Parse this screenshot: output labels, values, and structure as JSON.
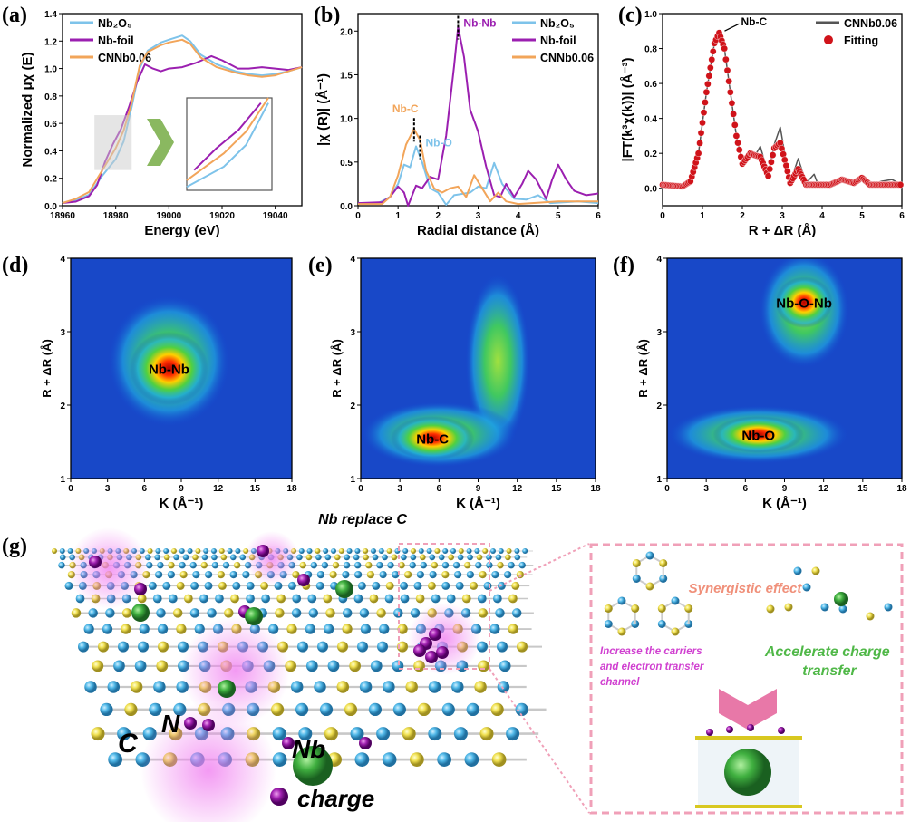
{
  "panel_labels": [
    "(a)",
    "(b)",
    "(c)",
    "(d)",
    "(e)",
    "(f)",
    "(g)"
  ],
  "colors": {
    "Nb2O5": "#7ec3ea",
    "Nb-foil": "#9b1fb0",
    "CNNb0.06": "#f2a55a",
    "fit_line": "#555555",
    "fitting": "#d0131a"
  },
  "chart_data": [
    {
      "id": "a",
      "type": "line",
      "xlabel": "Energy (eV)",
      "ylabel": "Normalized μχ (E)",
      "xlim": [
        18960,
        19050
      ],
      "ylim": [
        0,
        1.4
      ],
      "xticks": [
        18960,
        18980,
        19000,
        19020,
        19040
      ],
      "yticks": [
        "0.0",
        "0.2",
        "0.4",
        "0.6",
        "0.8",
        "1.0",
        "1.2",
        "1.4"
      ],
      "legend": "top-left",
      "inset": "zoom of 18972–18986 eV edge region",
      "series": [
        {
          "name": "Nb₂O₅",
          "color": "#7ec3ea",
          "points": [
            [
              18960,
              0.02
            ],
            [
              18965,
              0.04
            ],
            [
              18970,
              0.08
            ],
            [
              18975,
              0.22
            ],
            [
              18980,
              0.34
            ],
            [
              18983,
              0.47
            ],
            [
              18986,
              0.72
            ],
            [
              18989,
              1.0
            ],
            [
              18992,
              1.13
            ],
            [
              18997,
              1.19
            ],
            [
              19000,
              1.21
            ],
            [
              19005,
              1.24
            ],
            [
              19008,
              1.2
            ],
            [
              19012,
              1.1
            ],
            [
              19018,
              1.03
            ],
            [
              19025,
              0.98
            ],
            [
              19030,
              0.96
            ],
            [
              19035,
              0.95
            ],
            [
              19040,
              0.96
            ],
            [
              19045,
              0.98
            ],
            [
              19050,
              1.01
            ]
          ]
        },
        {
          "name": "Nb-foil",
          "color": "#9b1fb0",
          "points": [
            [
              18960,
              0.02
            ],
            [
              18965,
              0.03
            ],
            [
              18970,
              0.07
            ],
            [
              18973,
              0.15
            ],
            [
              18976,
              0.32
            ],
            [
              18979,
              0.45
            ],
            [
              18982,
              0.56
            ],
            [
              18985,
              0.72
            ],
            [
              18988,
              0.9
            ],
            [
              18991,
              1.03
            ],
            [
              18994,
              1.0
            ],
            [
              18997,
              0.98
            ],
            [
              19000,
              1.0
            ],
            [
              19005,
              1.01
            ],
            [
              19010,
              1.04
            ],
            [
              19016,
              1.09
            ],
            [
              19020,
              1.06
            ],
            [
              19026,
              1.0
            ],
            [
              19030,
              1.0
            ],
            [
              19035,
              1.01
            ],
            [
              19040,
              1.0
            ],
            [
              19045,
              0.99
            ],
            [
              19050,
              1.01
            ]
          ]
        },
        {
          "name": "CNNb0.06",
          "color": "#f2a55a",
          "points": [
            [
              18960,
              0.02
            ],
            [
              18965,
              0.05
            ],
            [
              18970,
              0.1
            ],
            [
              18975,
              0.26
            ],
            [
              18980,
              0.42
            ],
            [
              18983,
              0.55
            ],
            [
              18986,
              0.75
            ],
            [
              18989,
              1.02
            ],
            [
              18992,
              1.12
            ],
            [
              18997,
              1.17
            ],
            [
              19000,
              1.19
            ],
            [
              19005,
              1.21
            ],
            [
              19008,
              1.18
            ],
            [
              19012,
              1.08
            ],
            [
              19018,
              1.01
            ],
            [
              19025,
              0.97
            ],
            [
              19030,
              0.95
            ],
            [
              19035,
              0.94
            ],
            [
              19040,
              0.95
            ],
            [
              19045,
              0.98
            ],
            [
              19050,
              1.01
            ]
          ]
        }
      ]
    },
    {
      "id": "b",
      "type": "line",
      "xlabel": "Radial distance (Å)",
      "ylabel": "|χ (R)| (Å⁻¹)",
      "xlim": [
        0,
        6
      ],
      "ylim": [
        0,
        2.2
      ],
      "xticks": [
        0,
        1,
        2,
        3,
        4,
        5,
        6
      ],
      "yticks": [
        "0.0",
        "0.5",
        "1.0",
        "1.5",
        "2.0"
      ],
      "legend": "top-right",
      "annotations": [
        {
          "text": "Nb-C",
          "x": 1.4,
          "y": 0.88,
          "color": "#f2a55a"
        },
        {
          "text": "Nb-O",
          "x": 1.55,
          "y": 0.68,
          "color": "#7ec3ea"
        },
        {
          "text": "Nb-Nb",
          "x": 2.5,
          "y": 2.05,
          "color": "#9b1fb0"
        }
      ],
      "series": [
        {
          "name": "Nb₂O₅",
          "color": "#7ec3ea",
          "points": [
            [
              0,
              0.03
            ],
            [
              0.5,
              0.03
            ],
            [
              0.8,
              0.1
            ],
            [
              1.0,
              0.25
            ],
            [
              1.15,
              0.47
            ],
            [
              1.3,
              0.44
            ],
            [
              1.45,
              0.68
            ],
            [
              1.6,
              0.5
            ],
            [
              1.8,
              0.2
            ],
            [
              2.0,
              0.15
            ],
            [
              2.2,
              0.01
            ],
            [
              2.4,
              0.12
            ],
            [
              2.8,
              0.15
            ],
            [
              3.0,
              0.22
            ],
            [
              3.2,
              0.2
            ],
            [
              3.4,
              0.49
            ],
            [
              3.6,
              0.25
            ],
            [
              3.9,
              0.08
            ],
            [
              4.2,
              0.07
            ],
            [
              4.5,
              0.12
            ],
            [
              4.8,
              0.03
            ],
            [
              5.5,
              0.05
            ],
            [
              6,
              0.03
            ]
          ]
        },
        {
          "name": "Nb-foil",
          "color": "#9b1fb0",
          "points": [
            [
              0,
              0.03
            ],
            [
              0.6,
              0.04
            ],
            [
              0.8,
              0.1
            ],
            [
              1.0,
              0.22
            ],
            [
              1.15,
              0.15
            ],
            [
              1.25,
              0.0
            ],
            [
              1.45,
              0.23
            ],
            [
              1.6,
              0.2
            ],
            [
              1.8,
              0.33
            ],
            [
              2.0,
              0.3
            ],
            [
              2.2,
              0.8
            ],
            [
              2.4,
              1.6
            ],
            [
              2.5,
              2.05
            ],
            [
              2.65,
              1.7
            ],
            [
              2.8,
              1.1
            ],
            [
              3.0,
              0.85
            ],
            [
              3.2,
              0.45
            ],
            [
              3.4,
              0.12
            ],
            [
              3.55,
              0.1
            ],
            [
              3.7,
              0.25
            ],
            [
              3.9,
              0.1
            ],
            [
              4.1,
              0.25
            ],
            [
              4.25,
              0.4
            ],
            [
              4.45,
              0.3
            ],
            [
              4.7,
              0.08
            ],
            [
              4.85,
              0.3
            ],
            [
              5.0,
              0.47
            ],
            [
              5.2,
              0.3
            ],
            [
              5.4,
              0.17
            ],
            [
              5.7,
              0.12
            ],
            [
              6.0,
              0.14
            ]
          ]
        },
        {
          "name": "CNNb0.06",
          "color": "#f2a55a",
          "points": [
            [
              0,
              0.02
            ],
            [
              0.6,
              0.02
            ],
            [
              0.8,
              0.1
            ],
            [
              1.0,
              0.35
            ],
            [
              1.2,
              0.7
            ],
            [
              1.4,
              0.88
            ],
            [
              1.55,
              0.75
            ],
            [
              1.7,
              0.4
            ],
            [
              1.9,
              0.2
            ],
            [
              2.1,
              0.15
            ],
            [
              2.3,
              0.2
            ],
            [
              2.5,
              0.22
            ],
            [
              2.7,
              0.1
            ],
            [
              2.9,
              0.35
            ],
            [
              3.1,
              0.2
            ],
            [
              3.3,
              0.05
            ],
            [
              3.5,
              0.15
            ],
            [
              3.7,
              0.05
            ],
            [
              4.0,
              0.02
            ],
            [
              5.0,
              0.05
            ],
            [
              6,
              0.05
            ]
          ]
        }
      ]
    },
    {
      "id": "c",
      "type": "line",
      "xlabel": "R + ΔR (Å)",
      "ylabel": "|FT(k³χ(k))| (Å⁻³)",
      "xlim": [
        0,
        6
      ],
      "ylim": [
        -0.1,
        1.0
      ],
      "xticks": [
        0,
        1,
        2,
        3,
        4,
        5,
        6
      ],
      "yticks": [
        "0.0",
        "0.2",
        "0.4",
        "0.6",
        "0.8",
        "1.0"
      ],
      "legend": "top-right",
      "annotations": [
        {
          "text": "Nb-C",
          "x": 1.42,
          "y": 0.89,
          "color": "#000000"
        }
      ],
      "series": [
        {
          "name": "CNNb0.06",
          "color": "#555555",
          "style": "line",
          "points": [
            [
              0,
              0.02
            ],
            [
              0.5,
              0.01
            ],
            [
              0.7,
              0.04
            ],
            [
              0.9,
              0.2
            ],
            [
              1.1,
              0.55
            ],
            [
              1.3,
              0.83
            ],
            [
              1.42,
              0.89
            ],
            [
              1.55,
              0.8
            ],
            [
              1.7,
              0.55
            ],
            [
              1.85,
              0.3
            ],
            [
              2.0,
              0.15
            ],
            [
              2.2,
              0.2
            ],
            [
              2.3,
              0.18
            ],
            [
              2.45,
              0.24
            ],
            [
              2.65,
              0.08
            ],
            [
              2.8,
              0.25
            ],
            [
              2.95,
              0.35
            ],
            [
              3.1,
              0.15
            ],
            [
              3.2,
              0.03
            ],
            [
              3.4,
              0.17
            ],
            [
              3.6,
              0.03
            ],
            [
              3.8,
              0.08
            ],
            [
              3.9,
              0.02
            ],
            [
              4.2,
              0.02
            ],
            [
              4.5,
              0.05
            ],
            [
              4.8,
              0.03
            ],
            [
              5.0,
              0.06
            ],
            [
              5.2,
              0.02
            ],
            [
              5.5,
              0.04
            ],
            [
              5.75,
              0.05
            ],
            [
              6,
              0.02
            ]
          ]
        },
        {
          "name": "Fitting",
          "color": "#d0131a",
          "style": "markers",
          "points": [
            [
              0,
              0.02
            ],
            [
              0.5,
              0.01
            ],
            [
              0.7,
              0.04
            ],
            [
              0.9,
              0.2
            ],
            [
              1.1,
              0.55
            ],
            [
              1.3,
              0.83
            ],
            [
              1.42,
              0.89
            ],
            [
              1.55,
              0.8
            ],
            [
              1.7,
              0.55
            ],
            [
              1.85,
              0.3
            ],
            [
              2.0,
              0.14
            ],
            [
              2.2,
              0.2
            ],
            [
              2.3,
              0.19
            ],
            [
              2.45,
              0.18
            ],
            [
              2.65,
              0.07
            ],
            [
              2.8,
              0.23
            ],
            [
              2.95,
              0.26
            ],
            [
              3.1,
              0.13
            ],
            [
              3.2,
              0.03
            ],
            [
              3.4,
              0.11
            ],
            [
              3.6,
              0.02
            ],
            [
              3.8,
              0.02
            ],
            [
              4.2,
              0.02
            ],
            [
              4.5,
              0.05
            ],
            [
              4.8,
              0.03
            ],
            [
              5.0,
              0.06
            ],
            [
              5.2,
              0.02
            ],
            [
              5.5,
              0.02
            ],
            [
              6,
              0.02
            ]
          ]
        }
      ]
    },
    {
      "id": "d",
      "type": "heatmap",
      "xlabel": "K (Å⁻¹)",
      "ylabel": "R + ΔR (Å)",
      "xlim": [
        0,
        18
      ],
      "ylim": [
        1,
        4
      ],
      "xticks": [
        0,
        3,
        6,
        9,
        12,
        15,
        18
      ],
      "yticks": [
        1,
        2,
        3,
        4
      ],
      "peaks": [
        {
          "label": "",
          "K": 8,
          "R": 2.6,
          "sK": 5,
          "sR": 0.9,
          "intensity": 0.45
        },
        {
          "label": "Nb-Nb",
          "K": 8,
          "R": 2.5,
          "sK": 3.2,
          "sR": 0.5,
          "intensity": 1.0
        }
      ]
    },
    {
      "id": "e",
      "type": "heatmap",
      "xlabel": "K (Å⁻¹)",
      "ylabel": "R + ΔR (Å)",
      "xlim": [
        0,
        18
      ],
      "ylim": [
        1,
        4
      ],
      "xticks": [
        0,
        3,
        6,
        9,
        12,
        15,
        18
      ],
      "yticks": [
        1,
        2,
        3,
        4
      ],
      "caption": "Nb replace C",
      "peaks": [
        {
          "label": "",
          "K": 10.5,
          "R": 2.6,
          "sK": 2.5,
          "sR": 1.2,
          "intensity": 0.45
        },
        {
          "label": "",
          "K": 6,
          "R": 1.6,
          "sK": 6,
          "sR": 0.45,
          "intensity": 0.45
        },
        {
          "label": "Nb-C",
          "K": 5.5,
          "R": 1.55,
          "sK": 3.2,
          "sR": 0.3,
          "intensity": 1.0
        }
      ]
    },
    {
      "id": "f",
      "type": "heatmap",
      "xlabel": "K (Å⁻¹)",
      "ylabel": "R + ΔR (Å)",
      "xlim": [
        0,
        18
      ],
      "ylim": [
        1,
        4
      ],
      "xticks": [
        0,
        3,
        6,
        9,
        12,
        15,
        18
      ],
      "yticks": [
        1,
        2,
        3,
        4
      ],
      "peaks": [
        {
          "label": "",
          "K": 10.5,
          "R": 3.3,
          "sK": 3.5,
          "sR": 0.8,
          "intensity": 0.45
        },
        {
          "label": "",
          "K": 7,
          "R": 1.6,
          "sK": 7,
          "sR": 0.4,
          "intensity": 0.45
        },
        {
          "label": "Nb-O-Nb",
          "K": 10.5,
          "R": 3.4,
          "sK": 2.2,
          "sR": 0.35,
          "intensity": 0.9
        },
        {
          "label": "Nb-O",
          "K": 7,
          "R": 1.6,
          "sK": 3.5,
          "sR": 0.25,
          "intensity": 0.85
        }
      ]
    }
  ],
  "scheme": {
    "labels": {
      "C": "C",
      "N": "N",
      "Nb": "Nb",
      "charge": "charge"
    },
    "synergy": "Synergistic effect",
    "left_text": [
      "Increase the carriers",
      "and electron transfer",
      "channel"
    ],
    "right_text": [
      "Accelerate charge",
      "transfer"
    ]
  }
}
